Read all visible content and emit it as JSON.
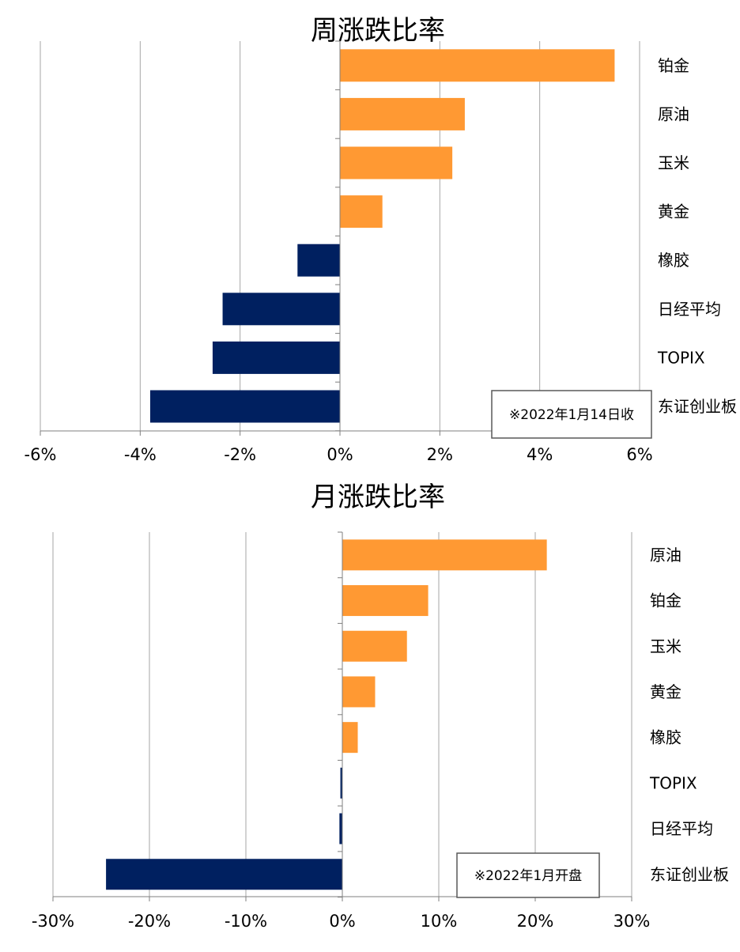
{
  "colors": {
    "positive": "#FF9933",
    "negative": "#002060",
    "grid": "#A6A6A6"
  },
  "chart_data": [
    {
      "type": "bar",
      "orientation": "horizontal",
      "title": "周涨跌比率",
      "categories": [
        "铂金",
        "原油",
        "玉米",
        "黄金",
        "橡胶",
        "日经平均",
        "TOPIX",
        "东证创业板"
      ],
      "values": [
        5.5,
        2.5,
        2.25,
        0.85,
        -0.85,
        -2.35,
        -2.55,
        -3.8
      ],
      "unit": "%",
      "xlim": [
        -6,
        6
      ],
      "xticks": [
        -6,
        -4,
        -2,
        0,
        2,
        4,
        6
      ],
      "tick_labels": [
        "-6%",
        "-4%",
        "-2%",
        "0%",
        "2%",
        "4%",
        "6%"
      ],
      "grid": true,
      "note": "※2022年1月14日收"
    },
    {
      "type": "bar",
      "orientation": "horizontal",
      "title": "月涨跌比率",
      "categories": [
        "原油",
        "铂金",
        "玉米",
        "黄金",
        "橡胶",
        "TOPIX",
        "日经平均",
        "东证创业板"
      ],
      "values": [
        21.2,
        8.9,
        6.7,
        3.4,
        1.6,
        -0.2,
        -0.3,
        -24.5
      ],
      "unit": "%",
      "xlim": [
        -30,
        30
      ],
      "xticks": [
        -30,
        -20,
        -10,
        0,
        10,
        20,
        30
      ],
      "tick_labels": [
        "-30%",
        "-20%",
        "-10%",
        "0%",
        "10%",
        "20%",
        "30%"
      ],
      "grid": true,
      "note": "※2022年1月开盘"
    }
  ]
}
